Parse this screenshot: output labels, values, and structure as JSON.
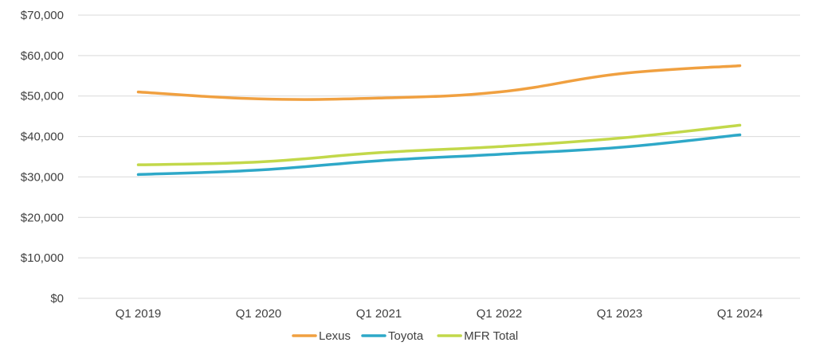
{
  "chart_data": {
    "type": "line",
    "title": "",
    "xlabel": "",
    "ylabel": "",
    "categories": [
      "Q1 2019",
      "Q1 2020",
      "Q1 2021",
      "Q1 2022",
      "Q1 2023",
      "Q1 2024"
    ],
    "ylim": [
      0,
      70000
    ],
    "yticks": [
      0,
      10000,
      20000,
      30000,
      40000,
      50000,
      60000,
      70000
    ],
    "ytick_labels": [
      "$0",
      "$10,000",
      "$20,000",
      "$30,000",
      "$40,000",
      "$50,000",
      "$60,000",
      "$70,000"
    ],
    "grid": true,
    "legend_position": "bottom",
    "series": [
      {
        "name": "Lexus",
        "color": "#f0a040",
        "values": [
          51000,
          49300,
          49500,
          51000,
          55500,
          57500
        ]
      },
      {
        "name": "Toyota",
        "color": "#2ea8c8",
        "values": [
          30600,
          31700,
          34000,
          35600,
          37300,
          40400
        ]
      },
      {
        "name": "MFR Total",
        "color": "#c2d84a",
        "values": [
          33000,
          33700,
          36000,
          37500,
          39600,
          42800
        ]
      }
    ]
  }
}
